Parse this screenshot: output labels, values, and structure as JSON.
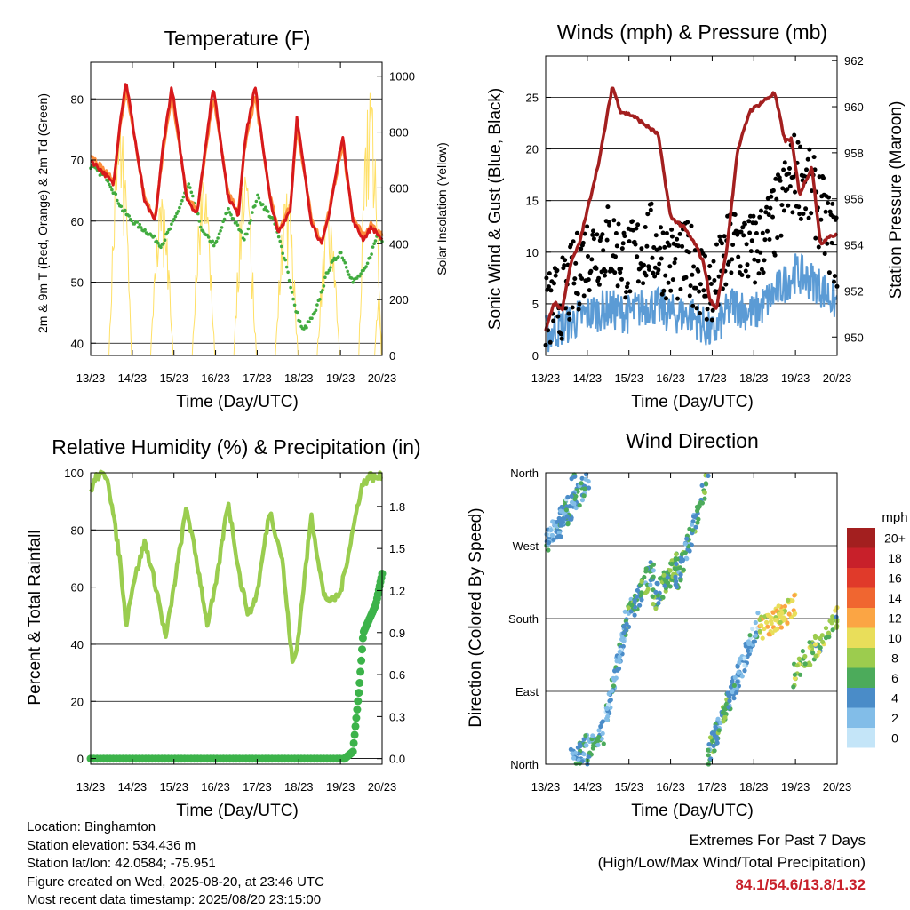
{
  "colors": {
    "temp2m": "#d7191c",
    "temp9m": "#fd8d3c",
    "dewpoint": "#41ab3f",
    "solar": "#ffe066",
    "gust": "#000000",
    "wind": "#5b9bd5",
    "pressure": "#a31f1f",
    "rh": "#9acd4f",
    "precip": "#3cb34a",
    "extremes": "#c8202a"
  },
  "x_ticks": [
    "13/23",
    "14/23",
    "15/23",
    "16/23",
    "17/23",
    "18/23",
    "19/23",
    "20/23"
  ],
  "speed_scale": {
    "title": "mph",
    "labels": [
      "20+",
      "18",
      "16",
      "14",
      "12",
      "10",
      "8",
      "6",
      "4",
      "2",
      "0"
    ],
    "colors": [
      "#a31f1f",
      "#c8202a",
      "#e03a2a",
      "#f06630",
      "#fba544",
      "#e9de5a",
      "#9ccc4e",
      "#4cab5b",
      "#4a8cc8",
      "#82bde8",
      "#c4e5f8"
    ]
  },
  "footer": {
    "location": "Location: Binghamton",
    "elevation": "Station elevation: 534.436 m",
    "latlon": "Station lat/lon: 42.0584; -75.951",
    "created": "Figure created on Wed, 2025-08-20, at 23:46 UTC",
    "recent": "Most recent data timestamp: 2025/08/20 23:15:00",
    "extremes_title": "Extremes For Past 7 Days",
    "extremes_subtitle": "(High/Low/Max Wind/Total Precipitation)",
    "extremes_values": "84.1/54.6/13.8/1.32"
  },
  "chart_data": [
    {
      "id": "temperature",
      "type": "line",
      "title": "Temperature (F)",
      "xlabel": "Time (Day/UTC)",
      "ylabel": "2m & 9m T (Red, Orange) & 2m Td (Green)",
      "ylabel_right": "Solar Insolation (Yellow)",
      "xlim": [
        0,
        7
      ],
      "ylim": [
        38,
        86
      ],
      "yticks": [
        40,
        50,
        60,
        70,
        80
      ],
      "ylim_right": [
        0,
        1050
      ],
      "yticks_right": [
        0,
        200,
        400,
        600,
        800,
        1000
      ],
      "grid": true,
      "series": [
        {
          "key": "temp2m",
          "x": [
            0,
            0.3,
            0.55,
            0.7,
            0.85,
            1.3,
            1.55,
            1.75,
            1.95,
            2.3,
            2.55,
            2.75,
            2.95,
            3.3,
            3.55,
            3.7,
            3.95,
            4.3,
            4.5,
            4.8,
            4.95,
            5.3,
            5.55,
            5.75,
            6.05,
            6.3,
            6.55,
            6.75,
            7
          ],
          "y": [
            70,
            68,
            66,
            76,
            83,
            63,
            60,
            73,
            82,
            64,
            61,
            72,
            82,
            64,
            61,
            73,
            82,
            64,
            58,
            62,
            77,
            60,
            56,
            62,
            74,
            60,
            57,
            59,
            57
          ]
        },
        {
          "key": "temp9m",
          "x": [
            0,
            0.3,
            0.55,
            0.7,
            0.85,
            1.3,
            1.55,
            1.75,
            1.95,
            2.3,
            2.55,
            2.75,
            2.95,
            3.3,
            3.55,
            3.7,
            3.95,
            4.3,
            4.5,
            4.8,
            4.95,
            5.3,
            5.55,
            5.75,
            6.05,
            6.3,
            6.55,
            6.75,
            7
          ],
          "y": [
            71,
            68.5,
            66.5,
            75,
            81.5,
            63.5,
            60.5,
            72,
            80.5,
            64.5,
            61.5,
            71,
            80.5,
            64.5,
            61.5,
            72,
            80.5,
            64.5,
            58.5,
            62.5,
            75.5,
            60.5,
            56.5,
            62.5,
            72.5,
            60.5,
            57.5,
            59.5,
            57.5
          ]
        },
        {
          "key": "dewpoint",
          "x": [
            0,
            0.4,
            0.75,
            1.0,
            1.4,
            1.7,
            2.0,
            2.35,
            2.7,
            3.0,
            3.3,
            3.7,
            4.0,
            4.4,
            4.7,
            4.9,
            5.1,
            5.4,
            5.7,
            6.0,
            6.3,
            6.6,
            6.9,
            7
          ],
          "y": [
            69,
            67,
            62,
            60,
            58,
            56,
            60,
            66,
            58,
            56,
            62,
            57,
            64,
            60,
            53,
            46,
            42,
            45,
            52,
            55,
            50,
            52,
            58,
            57
          ]
        },
        {
          "key": "solar",
          "days": 7,
          "peaks": [
            840,
            560,
            620,
            640,
            580,
            500,
            940
          ],
          "rise": 0.44,
          "set": 0.98,
          "last_peak": 230
        }
      ]
    },
    {
      "id": "winds",
      "type": "line",
      "title": "Winds (mph) & Pressure (mb)",
      "xlabel": "Time (Day/UTC)",
      "ylabel": "Sonic Wind & Gust (Blue, Black)",
      "ylabel_right": "Station Pressure (Maroon)",
      "xlim": [
        0,
        7
      ],
      "ylim": [
        0,
        29
      ],
      "yticks": [
        0,
        5,
        10,
        15,
        20,
        25
      ],
      "ylim_right": [
        949.2,
        962.2
      ],
      "yticks_right": [
        950,
        952,
        954,
        956,
        958,
        960,
        962
      ],
      "grid": true,
      "series": [
        {
          "key": "pressure",
          "x": [
            0,
            0.2,
            0.4,
            0.6,
            0.8,
            1.0,
            1.3,
            1.6,
            1.8,
            2.1,
            2.4,
            2.7,
            3.0,
            3.3,
            3.6,
            3.8,
            3.95,
            4.1,
            4.35,
            4.6,
            4.9,
            5.2,
            5.5,
            5.75,
            5.9,
            6.1,
            6.4,
            6.6,
            6.8,
            7
          ],
          "y": [
            950.3,
            951.5,
            951.2,
            953.2,
            954.0,
            955.5,
            957.8,
            960.9,
            959.8,
            959.6,
            959.2,
            958.8,
            955.2,
            954.8,
            954.0,
            953.2,
            951.6,
            951.2,
            953.8,
            958.0,
            959.8,
            960.2,
            960.6,
            958.5,
            958.6,
            956.2,
            957.4,
            954.0,
            954.4,
            954.4
          ]
        },
        {
          "key": "wind",
          "x": [
            0,
            0.5,
            1.0,
            1.5,
            2.0,
            2.5,
            3.0,
            3.5,
            4.0,
            4.5,
            5.0,
            5.5,
            6.0,
            6.5,
            7
          ],
          "y": [
            2,
            3,
            4,
            4.5,
            4,
            5,
            4,
            4,
            2,
            5,
            4,
            6,
            8,
            7,
            5
          ]
        },
        {
          "key": "gust",
          "x": [
            0,
            0.5,
            1.0,
            1.5,
            2.0,
            2.5,
            3.0,
            3.5,
            4.0,
            4.5,
            5.0,
            5.5,
            6.0,
            6.5,
            7
          ],
          "y": [
            4,
            6,
            10,
            11,
            9,
            11,
            9,
            9,
            6,
            11,
            10,
            13,
            18,
            15,
            10
          ]
        }
      ]
    },
    {
      "id": "humidity",
      "type": "line",
      "title": "Relative Humidity (%) & Precipitation (in)",
      "xlabel": "Time (Day/UTC)",
      "ylabel": "Percent & Total Rainfall",
      "xlim": [
        0,
        7
      ],
      "ylim": [
        -2,
        100
      ],
      "yticks": [
        0,
        20,
        40,
        60,
        80,
        100
      ],
      "ylim_right": [
        -0.04,
        2.04
      ],
      "yticks_right": [
        "0.0",
        "0.3",
        "0.6",
        "0.9",
        "1.2",
        "1.5",
        "1.8"
      ],
      "grid": true,
      "series": [
        {
          "key": "rh",
          "x": [
            0,
            0.15,
            0.4,
            0.7,
            0.85,
            1.0,
            1.3,
            1.6,
            1.8,
            2.0,
            2.3,
            2.6,
            2.8,
            3.0,
            3.3,
            3.6,
            3.8,
            4.0,
            4.3,
            4.6,
            4.85,
            4.95,
            5.3,
            5.6,
            5.8,
            6.0,
            6.3,
            6.5,
            6.7,
            6.85,
            7
          ],
          "y": [
            94,
            99,
            99,
            70,
            47,
            60,
            76,
            58,
            42,
            60,
            88,
            65,
            47,
            60,
            90,
            62,
            50,
            58,
            87,
            70,
            33,
            38,
            85,
            57,
            55,
            58,
            80,
            95,
            99,
            98,
            99
          ]
        },
        {
          "key": "precip",
          "x": [
            0,
            6.1,
            6.3,
            6.45,
            6.55,
            6.7,
            6.85,
            7
          ],
          "y": [
            0,
            0,
            0.05,
            0.5,
            0.9,
            1.0,
            1.1,
            1.32
          ]
        }
      ]
    },
    {
      "id": "direction",
      "type": "scatter",
      "title": "Wind Direction",
      "xlabel": "Time (Day/UTC)",
      "ylabel": "Direction (Colored By Speed)",
      "xlim": [
        0,
        7
      ],
      "ylim": [
        0,
        360
      ],
      "ytick_labels": [
        "North",
        "East",
        "South",
        "West",
        "North"
      ],
      "grid": true,
      "clusters": [
        {
          "x0": 0,
          "x1": 0.55,
          "d0": 270,
          "d1": 320,
          "spd": 3
        },
        {
          "x0": 0.3,
          "x1": 1.05,
          "d0": 290,
          "d1": 355,
          "spd": 4
        },
        {
          "x0": 0.6,
          "x1": 1.4,
          "d0": 5,
          "d1": 40,
          "spd": 4
        },
        {
          "x0": 1.45,
          "x1": 1.95,
          "d0": 60,
          "d1": 175,
          "spd": 3
        },
        {
          "x0": 1.85,
          "x1": 2.6,
          "d0": 170,
          "d1": 245,
          "spd": 5
        },
        {
          "x0": 2.55,
          "x1": 3.2,
          "d0": 200,
          "d1": 250,
          "spd": 6
        },
        {
          "x0": 3.1,
          "x1": 3.9,
          "d0": 215,
          "d1": 355,
          "spd": 5
        },
        {
          "x0": 3.9,
          "x1": 4.45,
          "d0": 10,
          "d1": 85,
          "spd": 5
        },
        {
          "x0": 4.45,
          "x1": 5.1,
          "d0": 85,
          "d1": 175,
          "spd": 3
        },
        {
          "x0": 5.1,
          "x1": 6.0,
          "d0": 165,
          "d1": 195,
          "spd": 10
        },
        {
          "x0": 5.95,
          "x1": 7,
          "d0": 110,
          "d1": 180,
          "spd": 7
        }
      ]
    }
  ]
}
